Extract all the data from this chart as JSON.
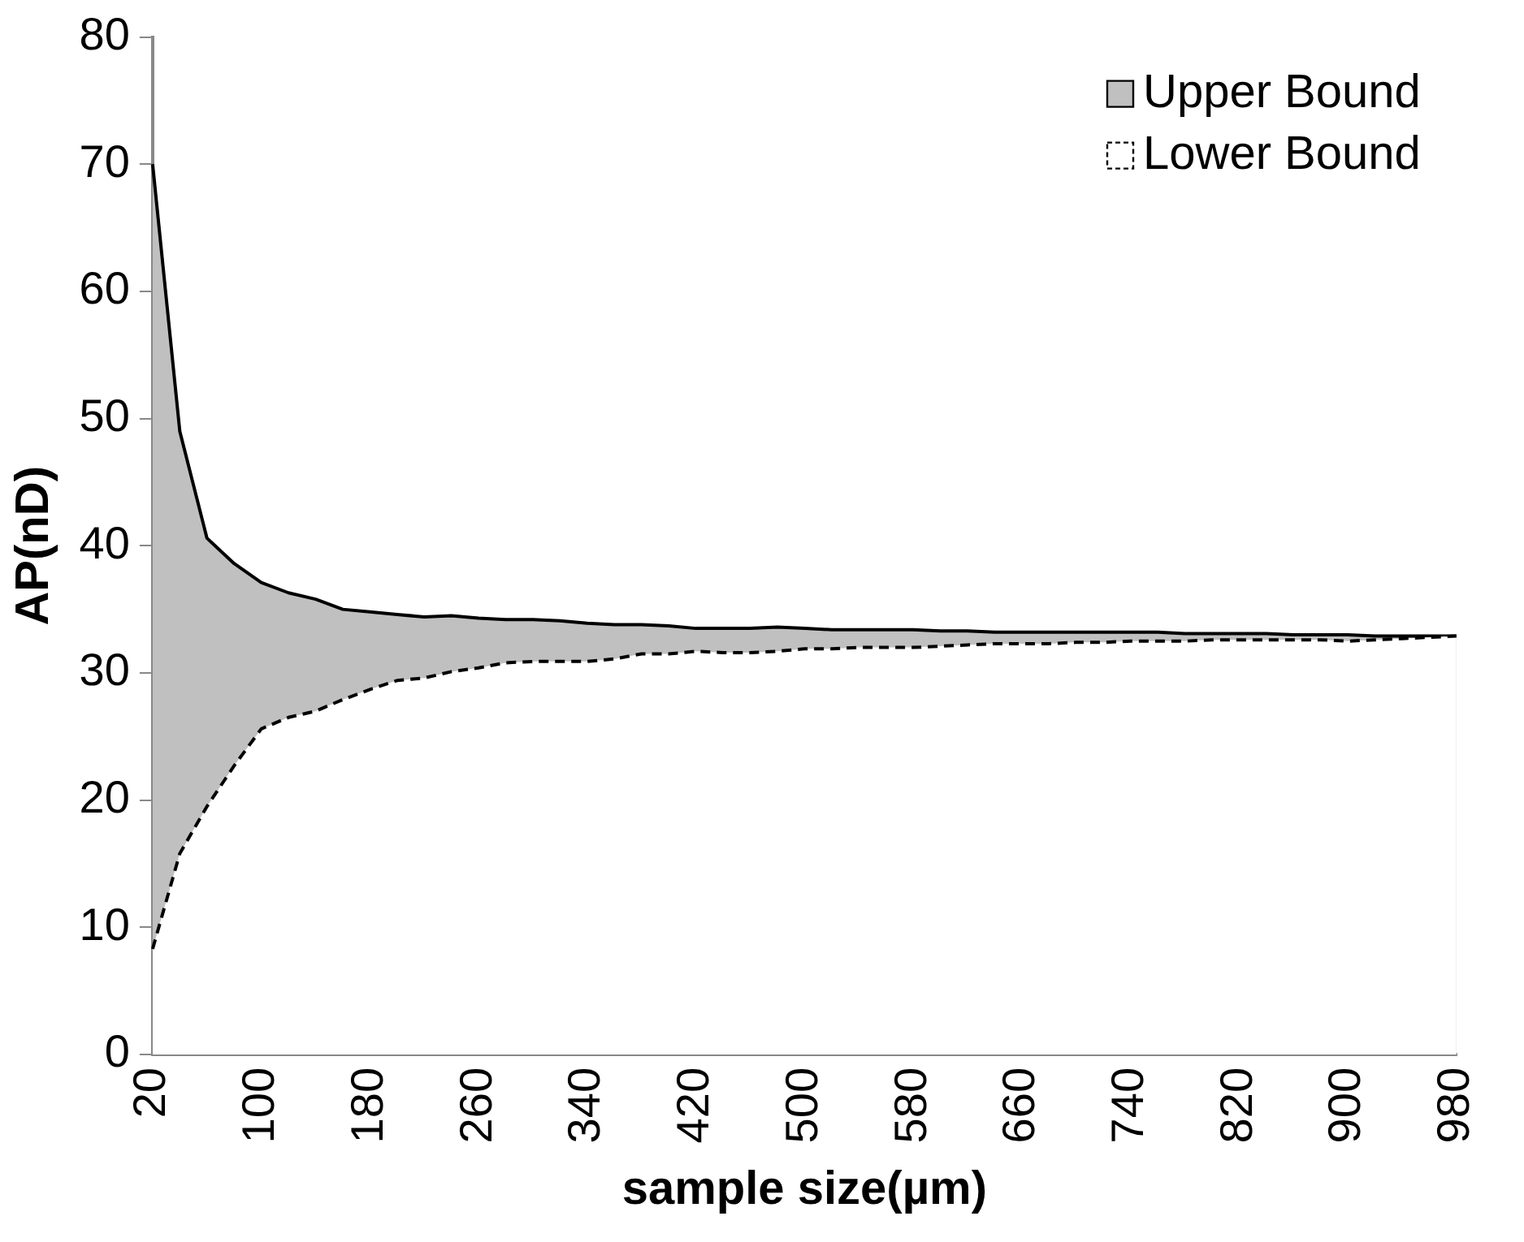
{
  "chart_data": {
    "type": "area",
    "xlabel": "sample size(µm)",
    "ylabel": "AP(nD)",
    "categories": [
      "20",
      null,
      null,
      null,
      "100",
      null,
      null,
      null,
      "180",
      null,
      null,
      null,
      "260",
      null,
      null,
      null,
      "340",
      null,
      null,
      null,
      "420",
      null,
      null,
      null,
      "500",
      null,
      null,
      null,
      "580",
      null,
      null,
      null,
      "660",
      null,
      null,
      null,
      "740",
      null,
      null,
      null,
      "820",
      null,
      null,
      null,
      "900",
      null,
      null,
      null,
      "980"
    ],
    "series": [
      {
        "name": "Upper Bound",
        "color": "#c0c0c0",
        "line_style": "solid",
        "values": [
          70,
          49,
          40.6,
          38.6,
          37.1,
          36.3,
          35.8,
          35,
          34.8,
          34.6,
          34.4,
          34.5,
          34.3,
          34.2,
          34.2,
          34.1,
          33.9,
          33.8,
          33.8,
          33.7,
          33.5,
          33.5,
          33.5,
          33.6,
          33.5,
          33.4,
          33.4,
          33.4,
          33.4,
          33.3,
          33.3,
          33.2,
          33.2,
          33.2,
          33.2,
          33.2,
          33.2,
          33.2,
          33.1,
          33.1,
          33.1,
          33.1,
          33.0,
          33.0,
          33.0,
          32.9,
          32.9,
          32.9,
          32.9
        ]
      },
      {
        "name": "Lower Bound",
        "color": "#ffffff",
        "line_style": "dashed",
        "values": [
          8.3,
          15.8,
          19.5,
          22.7,
          25.6,
          26.5,
          27.0,
          27.9,
          28.7,
          29.4,
          29.6,
          30.1,
          30.4,
          30.8,
          30.9,
          30.9,
          30.9,
          31.1,
          31.5,
          31.5,
          31.7,
          31.6,
          31.6,
          31.7,
          31.9,
          31.9,
          32.0,
          32.0,
          32.0,
          32.1,
          32.2,
          32.3,
          32.3,
          32.3,
          32.4,
          32.4,
          32.5,
          32.5,
          32.5,
          32.6,
          32.6,
          32.6,
          32.6,
          32.6,
          32.5,
          32.6,
          32.7,
          32.8,
          32.9
        ]
      }
    ],
    "ylim": [
      0,
      80
    ],
    "yticks": [
      0,
      10,
      20,
      30,
      40,
      50,
      60,
      70,
      80
    ],
    "grid": false,
    "legend": "top right"
  }
}
